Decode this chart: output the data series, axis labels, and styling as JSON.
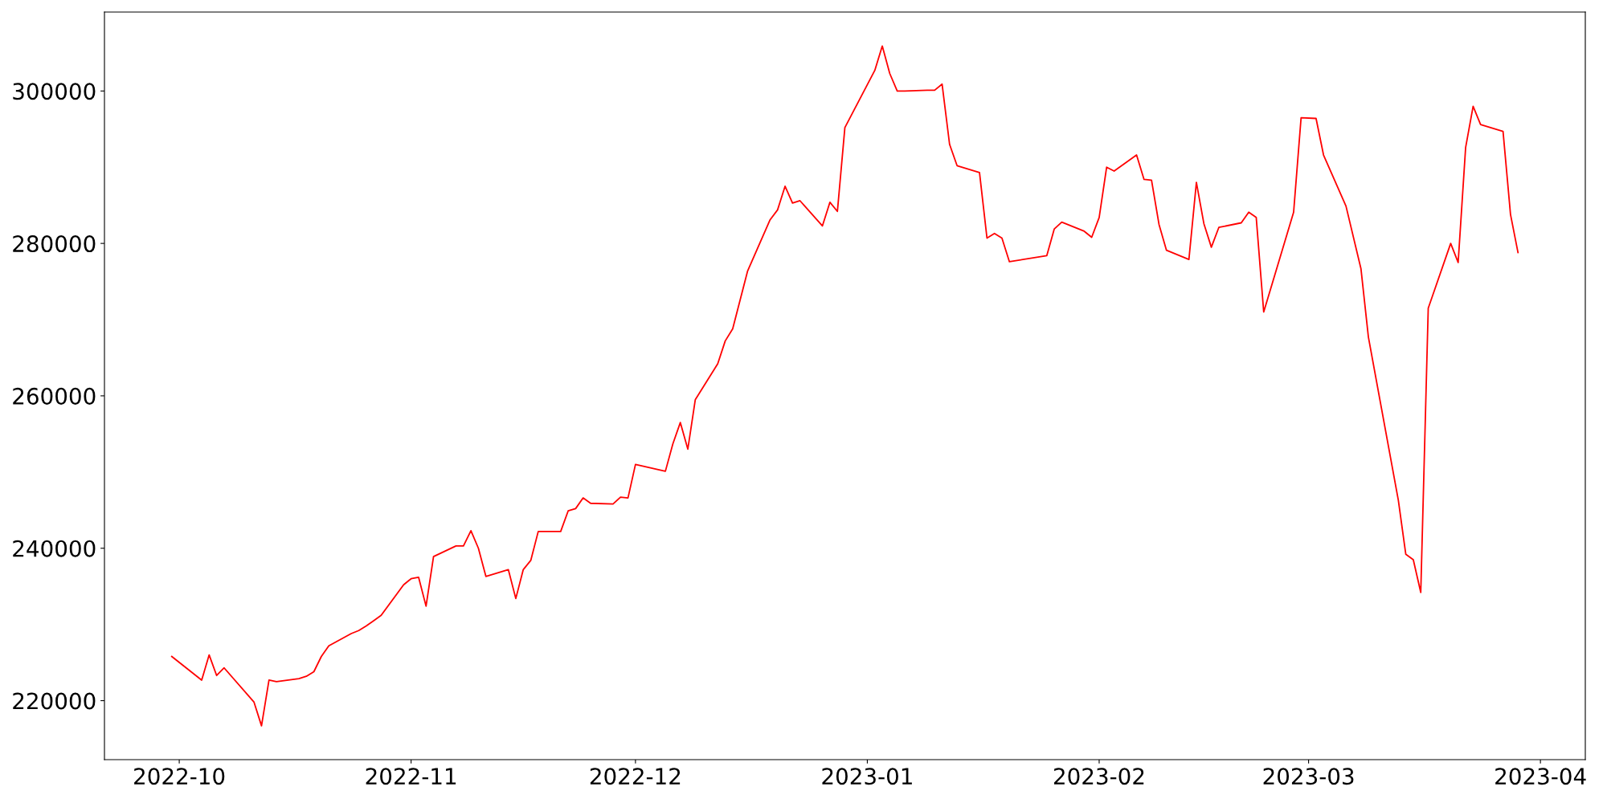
{
  "chart_data": {
    "type": "line",
    "x": [
      "2022-09-30",
      "2022-10-04",
      "2022-10-05",
      "2022-10-06",
      "2022-10-07",
      "2022-10-11",
      "2022-10-12",
      "2022-10-13",
      "2022-10-14",
      "2022-10-17",
      "2022-10-18",
      "2022-10-19",
      "2022-10-20",
      "2022-10-21",
      "2022-10-24",
      "2022-10-25",
      "2022-10-26",
      "2022-10-27",
      "2022-10-28",
      "2022-10-31",
      "2022-11-01",
      "2022-11-02",
      "2022-11-03",
      "2022-11-04",
      "2022-11-07",
      "2022-11-08",
      "2022-11-09",
      "2022-11-10",
      "2022-11-11",
      "2022-11-14",
      "2022-11-15",
      "2022-11-16",
      "2022-11-17",
      "2022-11-18",
      "2022-11-21",
      "2022-11-22",
      "2022-11-23",
      "2022-11-24",
      "2022-11-25",
      "2022-11-28",
      "2022-11-29",
      "2022-11-30",
      "2022-12-01",
      "2022-12-05",
      "2022-12-06",
      "2022-12-07",
      "2022-12-08",
      "2022-12-09",
      "2022-12-12",
      "2022-12-13",
      "2022-12-14",
      "2022-12-16",
      "2022-12-19",
      "2022-12-20",
      "2022-12-21",
      "2022-12-22",
      "2022-12-23",
      "2022-12-26",
      "2022-12-27",
      "2022-12-28",
      "2022-12-29",
      "2023-01-02",
      "2023-01-03",
      "2023-01-04",
      "2023-01-05",
      "2023-01-06",
      "2023-01-09",
      "2023-01-10",
      "2023-01-11",
      "2023-01-12",
      "2023-01-13",
      "2023-01-16",
      "2023-01-17",
      "2023-01-18",
      "2023-01-19",
      "2023-01-20",
      "2023-01-25",
      "2023-01-26",
      "2023-01-27",
      "2023-01-30",
      "2023-01-31",
      "2023-02-01",
      "2023-02-02",
      "2023-02-03",
      "2023-02-06",
      "2023-02-07",
      "2023-02-08",
      "2023-02-09",
      "2023-02-10",
      "2023-02-13",
      "2023-02-14",
      "2023-02-15",
      "2023-02-16",
      "2023-02-17",
      "2023-02-20",
      "2023-02-21",
      "2023-02-22",
      "2023-02-23",
      "2023-02-27",
      "2023-02-28",
      "2023-03-02",
      "2023-03-03",
      "2023-03-06",
      "2023-03-08",
      "2023-03-09",
      "2023-03-13",
      "2023-03-14",
      "2023-03-15",
      "2023-03-16",
      "2023-03-17",
      "2023-03-20",
      "2023-03-21",
      "2023-03-22",
      "2023-03-23",
      "2023-03-24",
      "2023-03-27",
      "2023-03-28",
      "2023-03-29"
    ],
    "series": [
      {
        "color": "#ff0000",
        "values": [
          225800,
          222700,
          226000,
          223300,
          224300,
          219800,
          216700,
          222700,
          222500,
          222900,
          223200,
          223800,
          225800,
          227200,
          228800,
          229200,
          229800,
          230500,
          231200,
          235200,
          236000,
          236200,
          232400,
          238900,
          240300,
          240300,
          242300,
          240000,
          236300,
          237200,
          233400,
          237200,
          238400,
          242200,
          242200,
          244900,
          245200,
          246600,
          245900,
          245800,
          246700,
          246600,
          251000,
          250100,
          253700,
          256500,
          253000,
          259500,
          264200,
          267200,
          268800,
          276400,
          283100,
          284400,
          287500,
          285300,
          285600,
          282300,
          285400,
          284200,
          295200,
          302700,
          305900,
          302300,
          300000,
          300000,
          300100,
          300100,
          300900,
          293000,
          290200,
          289300,
          280700,
          281300,
          280700,
          277600,
          278400,
          281900,
          282800,
          281600,
          280800,
          283400,
          290000,
          289500,
          291600,
          288400,
          288300,
          282500,
          279100,
          277900,
          288000,
          282600,
          279500,
          282100,
          282700,
          284100,
          283400,
          271000,
          284100,
          296500,
          296400,
          291600,
          284900,
          276700,
          267700,
          246300,
          239200,
          238500,
          234200,
          271500,
          280000,
          277500,
          292600,
          298000,
          295600,
          294700,
          283800,
          278800
        ]
      }
    ],
    "xlim": [
      "2022-09-21",
      "2023-04-07"
    ],
    "xticks": [
      {
        "value": "2022-10-01",
        "label": "2022-10"
      },
      {
        "value": "2022-11-01",
        "label": "2022-11"
      },
      {
        "value": "2022-12-01",
        "label": "2022-12"
      },
      {
        "value": "2023-01-01",
        "label": "2023-01"
      },
      {
        "value": "2023-02-01",
        "label": "2023-02"
      },
      {
        "value": "2023-03-01",
        "label": "2023-03"
      },
      {
        "value": "2023-04-01",
        "label": "2023-04"
      }
    ],
    "ylim": [
      212260,
      310360
    ],
    "yticks": [
      220000,
      240000,
      260000,
      280000,
      300000
    ],
    "grid": false,
    "marker": "none",
    "line_style": "solid"
  }
}
